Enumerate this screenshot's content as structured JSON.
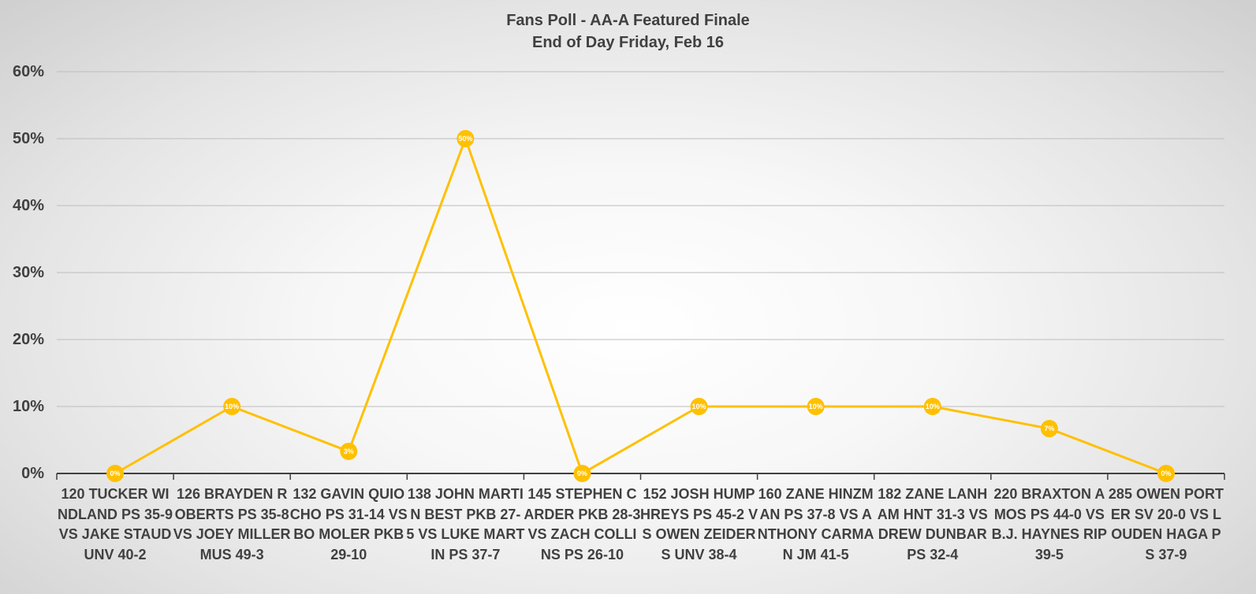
{
  "chart_data": {
    "type": "line",
    "title": "Fans Poll -  AA-A Featured Finale",
    "subtitle": "End of Day Friday, Feb 16",
    "xlabel": "",
    "ylabel": "",
    "ylim": [
      0,
      0.6
    ],
    "yticks": [
      0,
      0.1,
      0.2,
      0.3,
      0.4,
      0.5,
      0.6
    ],
    "ytick_labels": [
      "0%",
      "10%",
      "20%",
      "30%",
      "40%",
      "50%",
      "60%"
    ],
    "grid": true,
    "legend": "none",
    "categories": [
      "120 TUCKER WINDLAND PS 35-9 VS JAKE STAUD UNV 40-2",
      "126 BRAYDEN ROBERTS PS 35-8 VS JOEY MILLER MUS 49-3",
      "132 GAVIN QUIOCHO PS 31-14 VS BO MOLER PKB 29-10",
      "138 JOHN MARTIN BEST PKB 27-5 VS LUKE MARTIN PS 37-7",
      "145 STEPHEN CARDER PKB 28-3 VS ZACH COLLINS PS 26-10",
      "152 JOSH HUMPHREYS PS 45-2 VS OWEN ZEIDERS UNV 38-4",
      "160 ZANE HINZMAN PS 37-8 VS ANTHONY CARMAN JM 41-5",
      "182 ZANE LANHAM HNT 31-3 VS DREW DUNBAR PS 32-4",
      "220 BRAXTON AMOS PS 44-0 VS B.J. HAYNES RIP 39-5",
      "285 OWEN PORTER SV 20-0 VS LOUDEN HAGA PS 37-9"
    ],
    "series": [
      {
        "values": [
          0,
          0.1,
          0.033,
          0.5,
          0,
          0.1,
          0.1,
          0.1,
          0.067,
          0
        ],
        "data_labels": [
          "0%",
          "10%",
          "3%",
          "50%",
          "0%",
          "10%",
          "10%",
          "10%",
          "7%",
          "0%"
        ],
        "color": "#FFC000"
      }
    ]
  }
}
